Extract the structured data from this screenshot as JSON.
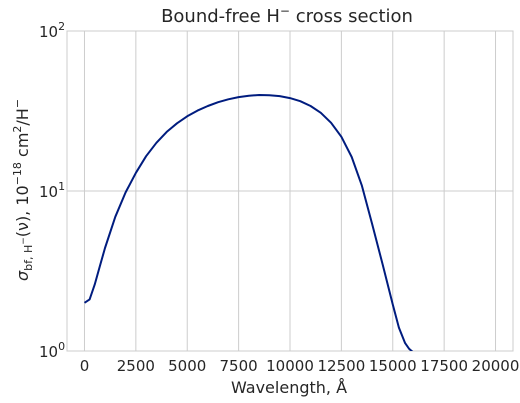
{
  "chart_data": {
    "type": "line",
    "title_main": "Bound-free H",
    "title_sup": "−",
    "title_rest": " cross section",
    "xlabel": "Wavelength, Å",
    "ylabel": {
      "sigma": "σ",
      "sub": "bf, H",
      "sub_sup": "−",
      "nu": "(ν), 10",
      "exp": "−18",
      "unit": " cm",
      "unit_sup": "2",
      "per": "/H",
      "per_sup": "−"
    },
    "xlim": [
      -850,
      20850
    ],
    "ylim": [
      1,
      100
    ],
    "yscale": "log",
    "x_ticks": [
      0,
      2500,
      5000,
      7500,
      10000,
      12500,
      15000,
      17500,
      20000
    ],
    "x_tick_labels": [
      "0",
      "2500",
      "5000",
      "7500",
      "10000",
      "12500",
      "15000",
      "17500",
      "20000"
    ],
    "y_ticks": [
      1,
      10,
      100
    ],
    "y_tick_labels": [
      {
        "base": "10",
        "exp": "0"
      },
      {
        "base": "10",
        "exp": "1"
      },
      {
        "base": "10",
        "exp": "2"
      }
    ],
    "grid": true,
    "series": [
      {
        "color": "#001c7f",
        "x": [
          0,
          250,
          500,
          750,
          1000,
          1500,
          2000,
          2500,
          3000,
          3500,
          4000,
          4500,
          5000,
          5500,
          6000,
          6500,
          7000,
          7500,
          8000,
          8500,
          9000,
          9500,
          10000,
          10500,
          11000,
          11500,
          12000,
          12500,
          13000,
          13500,
          14000,
          14500,
          15000,
          15300,
          15600,
          15800,
          16000,
          16050
        ],
        "y": [
          2.0,
          2.1,
          2.6,
          3.4,
          4.4,
          6.9,
          9.8,
          13.0,
          16.5,
          20.0,
          23.4,
          26.5,
          29.3,
          31.8,
          34.0,
          35.9,
          37.4,
          38.6,
          39.4,
          39.8,
          39.7,
          39.2,
          38.1,
          36.4,
          34.0,
          30.8,
          26.7,
          21.8,
          16.3,
          10.8,
          6.2,
          3.5,
          1.95,
          1.4,
          1.12,
          1.03,
          0.98,
          0.96
        ]
      }
    ]
  }
}
